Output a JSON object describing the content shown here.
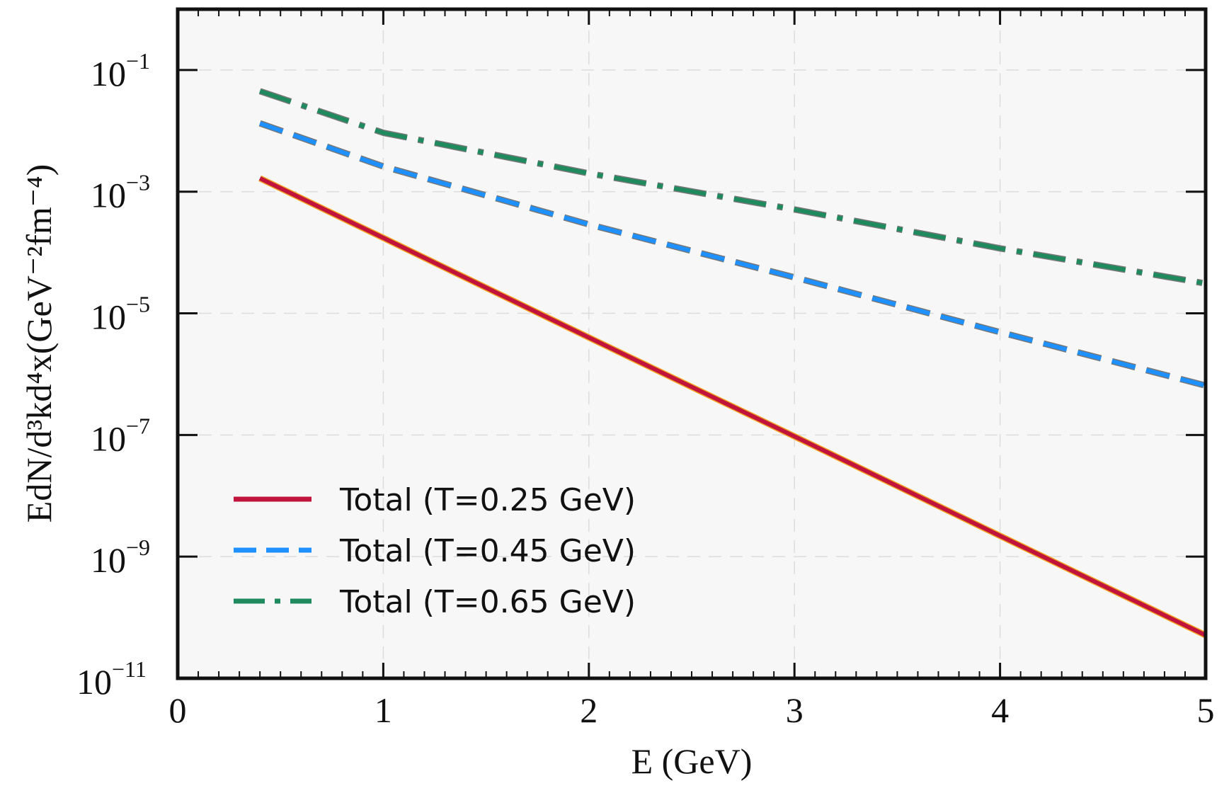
{
  "chart_data": {
    "type": "line",
    "title": "",
    "xlabel": "E (GeV)",
    "ylabel": "EdN/d³kd⁴x(GeV⁻²fm⁻⁴)",
    "xlim": [
      0,
      5
    ],
    "ylim": [
      1e-11,
      1
    ],
    "yscale": "log",
    "grid": true,
    "legend_position": "lower-left",
    "xticks": [
      0,
      1,
      2,
      3,
      4,
      5
    ],
    "xtick_labels": [
      "0",
      "1",
      "2",
      "3",
      "4",
      "5"
    ],
    "yticks": [
      0.1,
      0.001,
      1e-05,
      1e-07,
      1e-09,
      1e-11
    ],
    "ytick_base": "10",
    "ytick_exponents": [
      "−1",
      "−3",
      "−5",
      "−7",
      "−9",
      "−11"
    ],
    "series": [
      {
        "name": "Total (T=0.25 GeV)",
        "color": "#c0143c",
        "underlay": "#f5a623",
        "style": "solid",
        "x": [
          0.4,
          1,
          2,
          3,
          4,
          5
        ],
        "y": [
          0.00166,
          0.000174,
          4e-06,
          9.5e-08,
          2.2e-09,
          5.1e-11
        ]
      },
      {
        "name": "Total (T=0.45 GeV)",
        "color": "#1e90ff",
        "underlay": "#777777",
        "style": "dashed",
        "x": [
          0.4,
          1,
          2,
          3,
          4,
          5
        ],
        "y": [
          0.0133,
          0.0026,
          0.00029,
          3.9e-05,
          4.9e-06,
          6.5e-07
        ]
      },
      {
        "name": "Total (T=0.65 GeV)",
        "color": "#1f8a5e",
        "underlay": "#777777",
        "style": "dashdot",
        "x": [
          0.4,
          1,
          2,
          3,
          4,
          5
        ],
        "y": [
          0.045,
          0.0093,
          0.002,
          0.00051,
          0.000117,
          3.1e-05
        ]
      }
    ]
  }
}
